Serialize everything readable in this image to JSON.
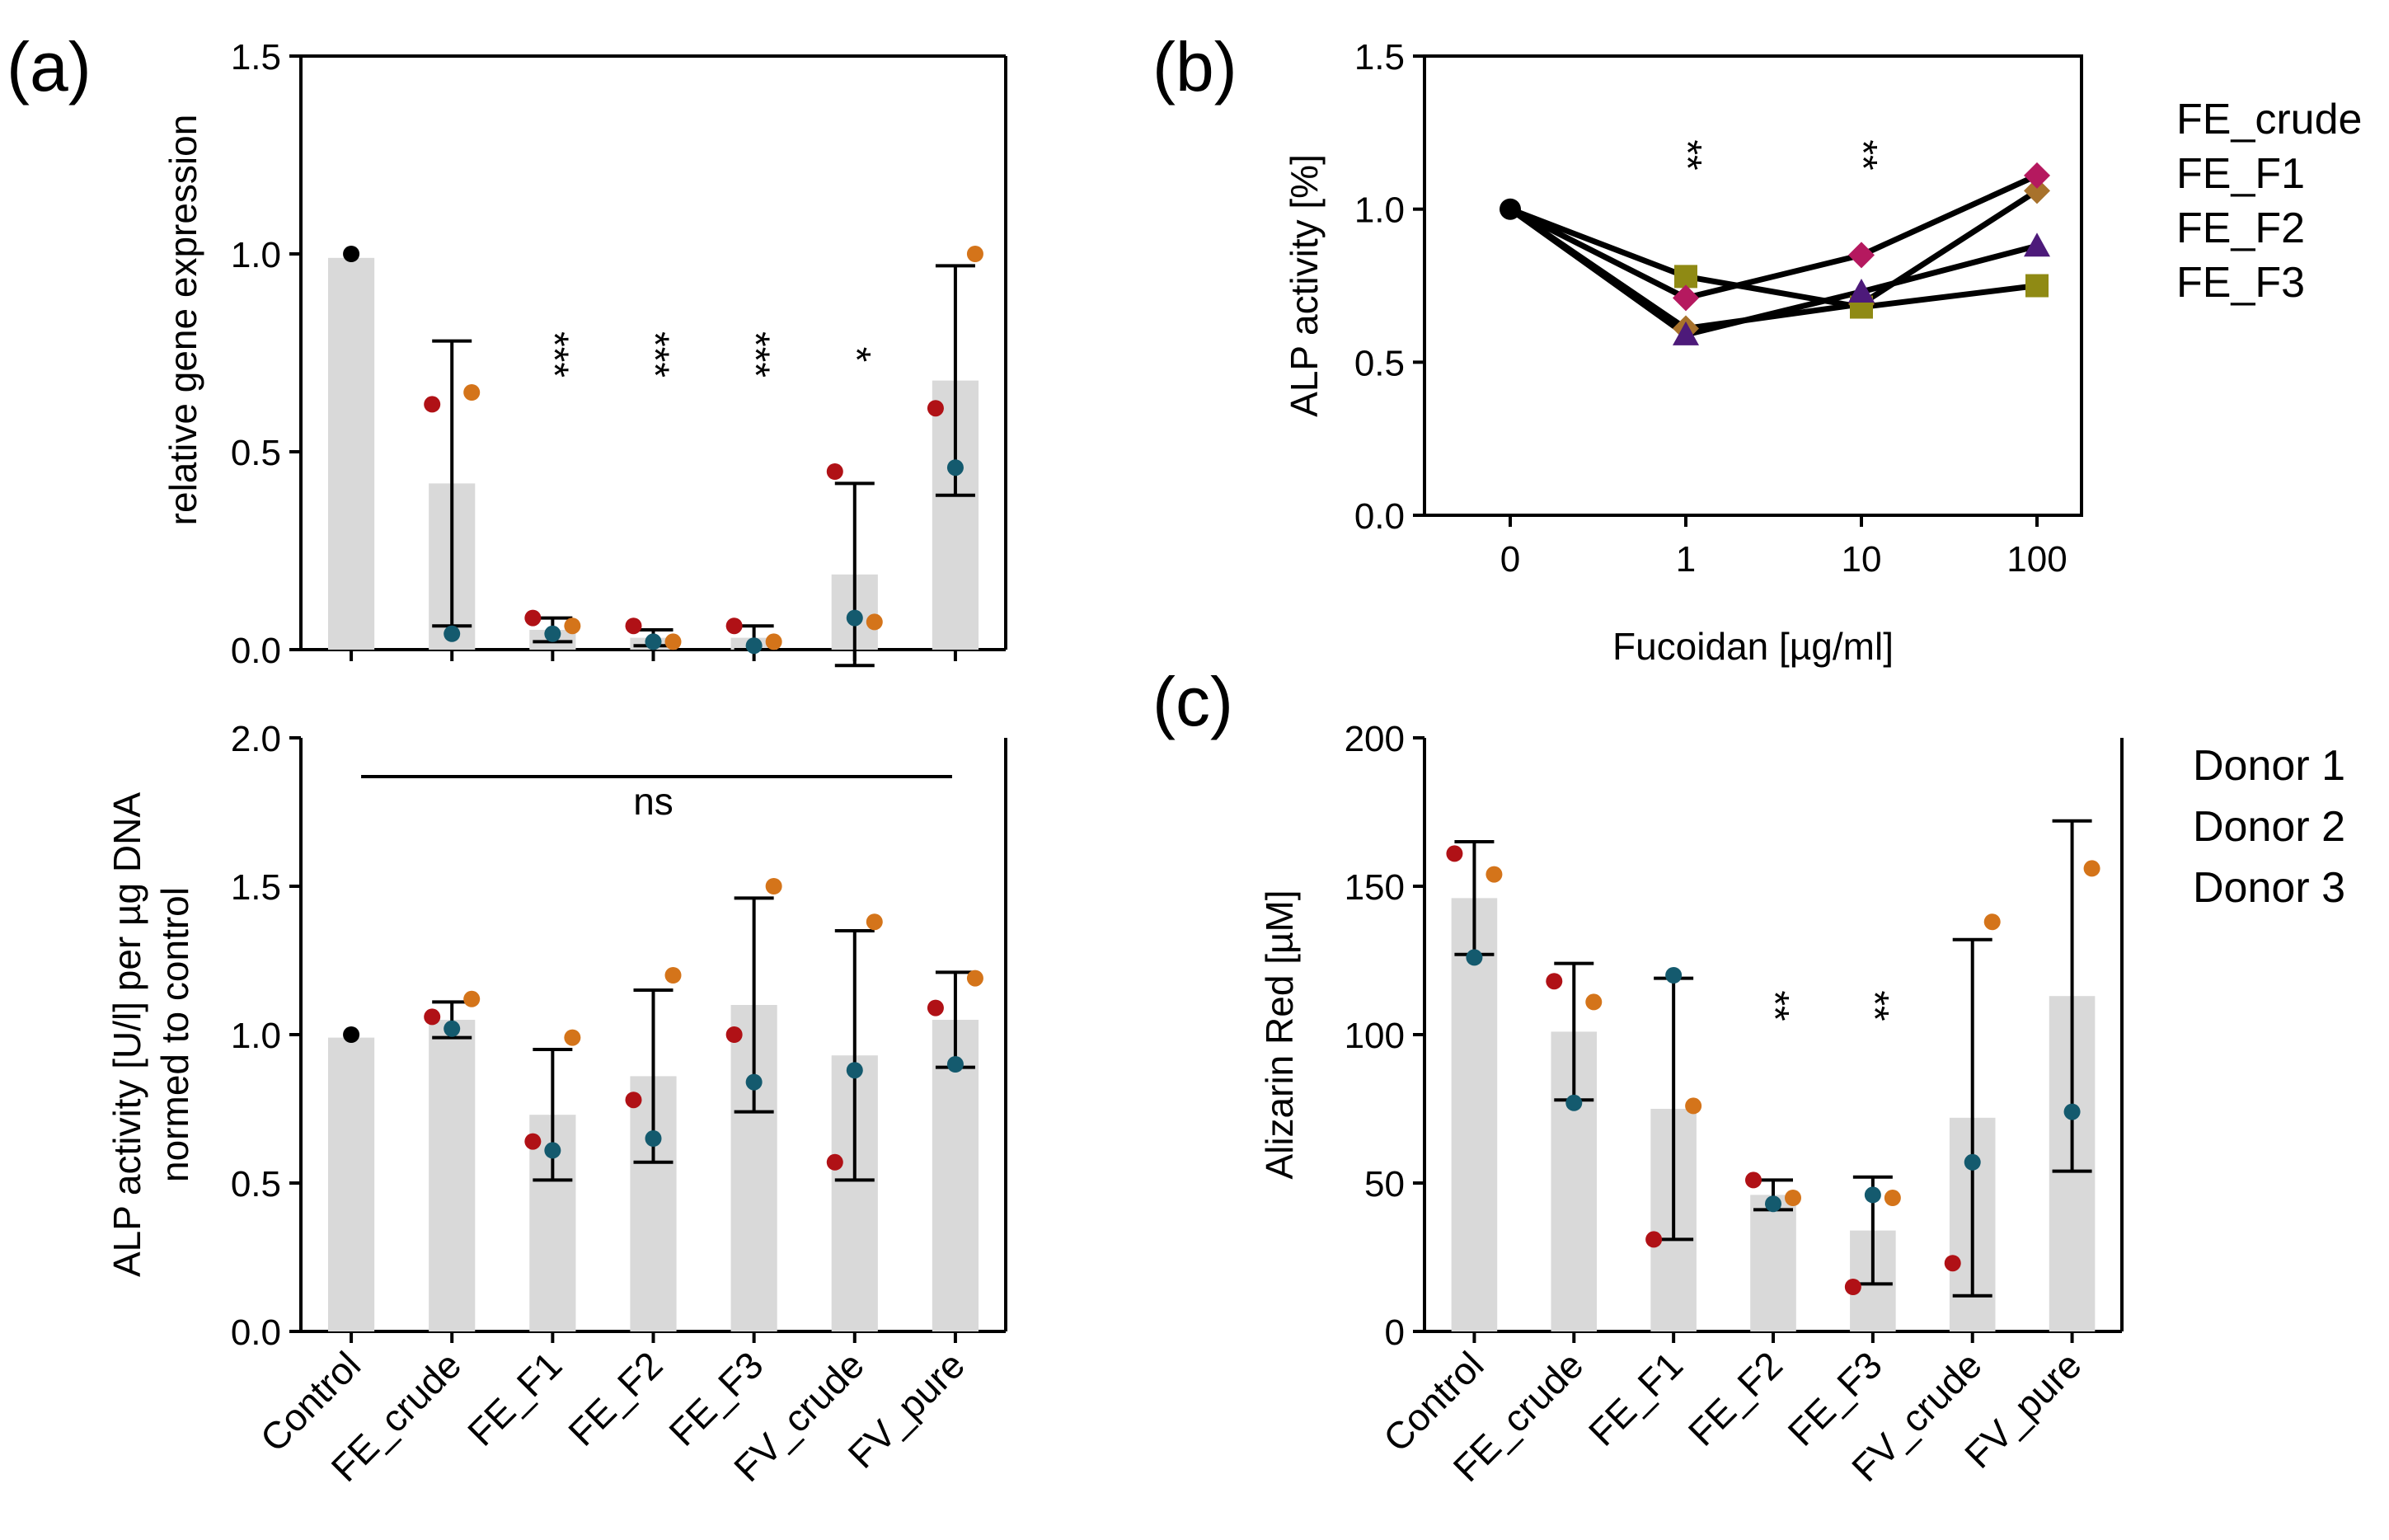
{
  "panels": {
    "a": "(a)",
    "b": "(b)",
    "c": "(c)"
  },
  "colors": {
    "bar": "#d9d9d9",
    "control_dot": "#000000",
    "donor1": "#b01116",
    "donor2": "#d4741a",
    "donor3": "#145a6e",
    "FE_crude": "#a8722c",
    "FE_F1": "#8f8a14",
    "FE_F2": "#4d1a7a",
    "FE_F3": "#b5195f"
  },
  "legends": {
    "fractions": [
      {
        "label": "FE_crude",
        "color": "#a8722c"
      },
      {
        "label": "FE_F1",
        "color": "#8f8a14"
      },
      {
        "label": "FE_F2",
        "color": "#4d1a7a"
      },
      {
        "label": "FE_F3",
        "color": "#b5195f"
      }
    ],
    "donors": [
      {
        "label": "Donor 1",
        "color": "#b01116"
      },
      {
        "label": "Donor 2",
        "color": "#d4741a"
      },
      {
        "label": "Donor 3",
        "color": "#145a6e"
      }
    ]
  },
  "chart_data": [
    {
      "id": "a_top",
      "type": "bar",
      "ylabel": "relative gene expression",
      "ylim": [
        0,
        1.5
      ],
      "yticks": [
        "0.0",
        "0.5",
        "1.0",
        "1.5"
      ],
      "categories": [
        "Control",
        "FE_crude",
        "FE_F1",
        "FE_F2",
        "FE_F3",
        "FV_crude",
        "FV_pure"
      ],
      "values": [
        0.99,
        0.42,
        0.05,
        0.03,
        0.03,
        0.19,
        0.68
      ],
      "errors": [
        null,
        0.36,
        0.03,
        0.02,
        0.03,
        0.23,
        0.29
      ],
      "significance": [
        "",
        "",
        "***",
        "***",
        "***",
        "*",
        ""
      ],
      "control_point": 1.0,
      "donors": [
        {
          "name": "Donor 1",
          "values": [
            null,
            0.62,
            0.08,
            0.06,
            0.06,
            0.45,
            0.61
          ]
        },
        {
          "name": "Donor 2",
          "values": [
            null,
            0.65,
            0.06,
            0.02,
            0.02,
            0.07,
            1.0
          ]
        },
        {
          "name": "Donor 3",
          "values": [
            null,
            0.04,
            0.04,
            0.02,
            0.01,
            0.08,
            0.46
          ]
        }
      ]
    },
    {
      "id": "a_bottom",
      "type": "bar",
      "ylabel_lines": [
        "ALP activity [U/l] per µg  DNA",
        "normed to control"
      ],
      "ylim": [
        0,
        2.0
      ],
      "yticks": [
        "0.0",
        "0.5",
        "1.0",
        "1.5",
        "2.0"
      ],
      "categories": [
        "Control",
        "FE_crude",
        "FE_F1",
        "FE_F2",
        "FE_F3",
        "FV_crude",
        "FV_pure"
      ],
      "values": [
        0.99,
        1.05,
        0.73,
        0.86,
        1.1,
        0.93,
        1.05
      ],
      "errors": [
        null,
        0.06,
        0.22,
        0.29,
        0.36,
        0.42,
        0.16
      ],
      "bracket_label": "ns",
      "control_point": 1.0,
      "donors": [
        {
          "name": "Donor 1",
          "values": [
            null,
            1.06,
            0.64,
            0.78,
            1.0,
            0.57,
            1.09
          ]
        },
        {
          "name": "Donor 2",
          "values": [
            null,
            1.12,
            0.99,
            1.2,
            1.5,
            1.38,
            1.19
          ]
        },
        {
          "name": "Donor 3",
          "values": [
            null,
            1.02,
            0.61,
            0.65,
            0.84,
            0.88,
            0.9
          ]
        }
      ]
    },
    {
      "id": "b",
      "type": "line",
      "xlabel": "Fucoidan [µg/ml]",
      "ylabel": "ALP activity [%]",
      "ylim": [
        0,
        1.5
      ],
      "yticks": [
        "0.0",
        "0.5",
        "1.0",
        "1.5"
      ],
      "x": [
        "0",
        "1",
        "10",
        "100"
      ],
      "significance": [
        "",
        "**",
        "**",
        ""
      ],
      "start_value": 1.0,
      "series": [
        {
          "name": "FE_crude",
          "marker": "diamond",
          "values": [
            1.0,
            0.61,
            0.69,
            1.06
          ]
        },
        {
          "name": "FE_F1",
          "marker": "square",
          "values": [
            1.0,
            0.78,
            0.68,
            0.75
          ]
        },
        {
          "name": "FE_F2",
          "marker": "triangle",
          "values": [
            1.0,
            0.59,
            0.73,
            0.88
          ]
        },
        {
          "name": "FE_F3",
          "marker": "circle",
          "values": [
            1.0,
            0.71,
            0.85,
            1.11
          ]
        }
      ]
    },
    {
      "id": "c",
      "type": "bar",
      "ylabel": "Alizarin Red [µM]",
      "ylim": [
        0,
        200
      ],
      "yticks": [
        "0",
        "50",
        "100",
        "150",
        "200"
      ],
      "categories": [
        "Control",
        "FE_crude",
        "FE_F1",
        "FE_F2",
        "FE_F3",
        "FV_crude",
        "FV_pure"
      ],
      "values": [
        146,
        101,
        75,
        46,
        34,
        72,
        113
      ],
      "errors": [
        19,
        23,
        44,
        5,
        18,
        60,
        59
      ],
      "significance": [
        "",
        "",
        "",
        "**",
        "**",
        "",
        ""
      ],
      "donors": [
        {
          "name": "Donor 1",
          "values": [
            161,
            118,
            31,
            51,
            15,
            23,
            null
          ]
        },
        {
          "name": "Donor 2",
          "values": [
            154,
            111,
            76,
            45,
            45,
            138,
            156
          ]
        },
        {
          "name": "Donor 3",
          "values": [
            126,
            77,
            120,
            43,
            46,
            57,
            74
          ]
        }
      ]
    }
  ]
}
